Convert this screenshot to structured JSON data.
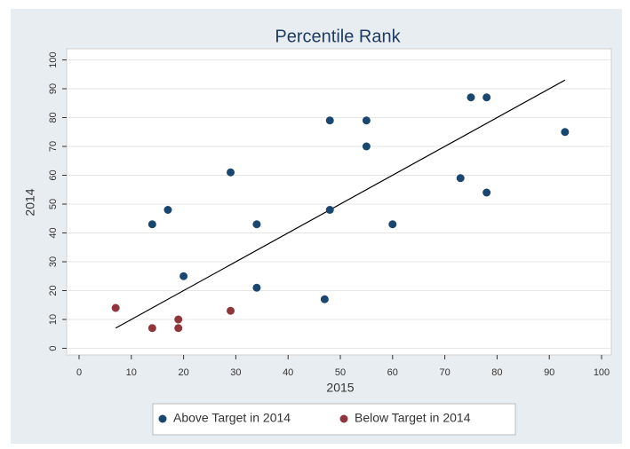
{
  "chart_data": {
    "type": "scatter",
    "title": "Percentile Rank",
    "x_label": "2015",
    "y_label": "2014",
    "xlim": [
      0,
      100
    ],
    "xticks": [
      0,
      10,
      20,
      30,
      40,
      50,
      60,
      70,
      80,
      90,
      100
    ],
    "ylim": [
      0,
      100
    ],
    "yticks": [
      0,
      10,
      20,
      30,
      40,
      50,
      60,
      70,
      80,
      90,
      100
    ],
    "grid": true,
    "legend": "bottom",
    "series": [
      {
        "name": "Above Target in 2014",
        "color": "#1a476f",
        "x": [
          14,
          17,
          20,
          29,
          34,
          34,
          47,
          48,
          48,
          55,
          55,
          60,
          73,
          75,
          78,
          78,
          93
        ],
        "values": [
          43,
          48,
          25,
          61,
          43,
          21,
          17,
          79,
          48,
          79,
          70,
          43,
          59,
          87,
          87,
          54,
          75
        ]
      },
      {
        "name": "Below Target in 2014",
        "color": "#90353b",
        "x": [
          7,
          14,
          19,
          19,
          29
        ],
        "values": [
          14,
          7,
          10,
          7,
          13
        ]
      }
    ],
    "fit_line": {
      "color": "#000000",
      "x": [
        7,
        93
      ],
      "values": [
        7,
        93
      ]
    }
  }
}
